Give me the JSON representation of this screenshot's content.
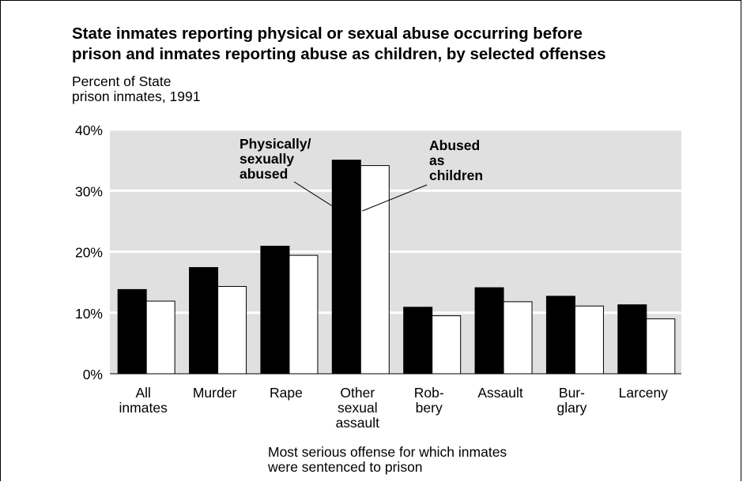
{
  "chart_data": {
    "type": "bar",
    "title": "State inmates reporting physical or sexual abuse occurring before\nprison and inmates reporting abuse as children, by selected offenses",
    "ylabel": "Percent of State\nprison inmates, 1991",
    "xlabel": "Most serious offense for which inmates\nwere sentenced to prison",
    "categories": [
      "All\ninmates",
      "Murder",
      "Rape",
      "Other\nsexual\nassault",
      "Rob-\nbery",
      "Assault",
      "Bur-\nglary",
      "Larceny"
    ],
    "series": [
      {
        "name": "Physically/\nsexually\nabused",
        "color": "#000000",
        "values": [
          13.8,
          17.4,
          20.9,
          35.0,
          10.9,
          14.1,
          12.7,
          11.3
        ]
      },
      {
        "name": "Abused\nas\nchildren",
        "color": "#ffffff",
        "values": [
          11.9,
          14.3,
          19.4,
          34.1,
          9.5,
          11.8,
          11.1,
          9.0
        ]
      }
    ],
    "ylim": [
      0,
      40
    ],
    "yticks": [
      0,
      10,
      20,
      30,
      40
    ],
    "ytick_labels": [
      "0%",
      "10%",
      "20%",
      "30%",
      "40%"
    ],
    "grid": true,
    "plot_background": "#e0e0e0",
    "legend": "annotations pointing to the Other sexual assault bars"
  }
}
